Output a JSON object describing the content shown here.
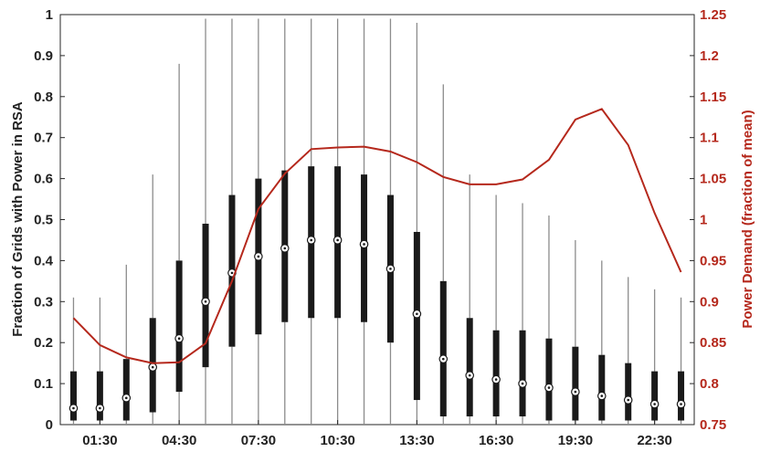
{
  "chart_data": {
    "type": "box",
    "x_tick_labels": [
      "01:30",
      "04:30",
      "07:30",
      "10:30",
      "13:30",
      "16:30",
      "19:30",
      "22:30"
    ],
    "left_axis": {
      "label": "Fraction of Grids with Power in RSA",
      "ylim": [
        0,
        1
      ],
      "ticks": [
        0,
        0.1,
        0.2,
        0.3,
        0.4,
        0.5,
        0.6,
        0.7,
        0.8,
        0.9,
        1
      ],
      "tick_labels": [
        "0",
        "0.1",
        "0.2",
        "0.3",
        "0.4",
        "0.5",
        "0.6",
        "0.7",
        "0.8",
        "0.9",
        "1"
      ]
    },
    "right_axis": {
      "label": "Power Demand (fraction of mean)",
      "ylim": [
        0.75,
        1.25
      ],
      "ticks": [
        0.75,
        0.8,
        0.85,
        0.9,
        0.95,
        1,
        1.05,
        1.1,
        1.15,
        1.2,
        1.25
      ],
      "tick_labels": [
        "0.75",
        "0.8",
        "0.85",
        "0.9",
        "0.95",
        "1",
        "1.05",
        "1.1",
        "1.15",
        "1.2",
        "1.25"
      ],
      "color": "#b5281c"
    },
    "series": [
      {
        "type": "box",
        "axis": "left",
        "boxes": [
          {
            "q1": 0.01,
            "median": 0.04,
            "q3": 0.13,
            "whisker_high": 0.31
          },
          {
            "q1": 0.01,
            "median": 0.04,
            "q3": 0.13,
            "whisker_high": 0.31
          },
          {
            "q1": 0.01,
            "median": 0.065,
            "q3": 0.16,
            "whisker_high": 0.39
          },
          {
            "q1": 0.03,
            "median": 0.14,
            "q3": 0.26,
            "whisker_high": 0.61
          },
          {
            "q1": 0.08,
            "median": 0.21,
            "q3": 0.4,
            "whisker_high": 0.88
          },
          {
            "q1": 0.14,
            "median": 0.3,
            "q3": 0.49,
            "whisker_high": 0.99
          },
          {
            "q1": 0.19,
            "median": 0.37,
            "q3": 0.56,
            "whisker_high": 0.99
          },
          {
            "q1": 0.22,
            "median": 0.41,
            "q3": 0.6,
            "whisker_high": 0.99
          },
          {
            "q1": 0.25,
            "median": 0.43,
            "q3": 0.62,
            "whisker_high": 0.99
          },
          {
            "q1": 0.26,
            "median": 0.45,
            "q3": 0.63,
            "whisker_high": 0.99
          },
          {
            "q1": 0.26,
            "median": 0.45,
            "q3": 0.63,
            "whisker_high": 0.99
          },
          {
            "q1": 0.25,
            "median": 0.44,
            "q3": 0.61,
            "whisker_high": 0.99
          },
          {
            "q1": 0.2,
            "median": 0.38,
            "q3": 0.56,
            "whisker_high": 0.99
          },
          {
            "q1": 0.06,
            "median": 0.27,
            "q3": 0.47,
            "whisker_high": 0.98
          },
          {
            "q1": 0.02,
            "median": 0.16,
            "q3": 0.35,
            "whisker_high": 0.83
          },
          {
            "q1": 0.02,
            "median": 0.12,
            "q3": 0.26,
            "whisker_high": 0.61
          },
          {
            "q1": 0.02,
            "median": 0.11,
            "q3": 0.23,
            "whisker_high": 0.56
          },
          {
            "q1": 0.02,
            "median": 0.1,
            "q3": 0.23,
            "whisker_high": 0.54
          },
          {
            "q1": 0.01,
            "median": 0.09,
            "q3": 0.21,
            "whisker_high": 0.51
          },
          {
            "q1": 0.01,
            "median": 0.08,
            "q3": 0.19,
            "whisker_high": 0.45
          },
          {
            "q1": 0.01,
            "median": 0.07,
            "q3": 0.17,
            "whisker_high": 0.4
          },
          {
            "q1": 0.01,
            "median": 0.06,
            "q3": 0.15,
            "whisker_high": 0.36
          },
          {
            "q1": 0.01,
            "median": 0.05,
            "q3": 0.13,
            "whisker_high": 0.33
          },
          {
            "q1": 0.01,
            "median": 0.05,
            "q3": 0.13,
            "whisker_high": 0.31
          }
        ],
        "box_color": "#1a1a1a",
        "whisker_color": "#8c8c8c"
      },
      {
        "type": "line",
        "axis": "right",
        "values": [
          0.88,
          0.847,
          0.832,
          0.825,
          0.826,
          0.849,
          0.925,
          1.013,
          1.056,
          1.086,
          1.088,
          1.089,
          1.083,
          1.07,
          1.052,
          1.043,
          1.043,
          1.049,
          1.073,
          1.122,
          1.135,
          1.091,
          1.008,
          0.936
        ],
        "color": "#b5281c"
      }
    ],
    "grid": false
  }
}
